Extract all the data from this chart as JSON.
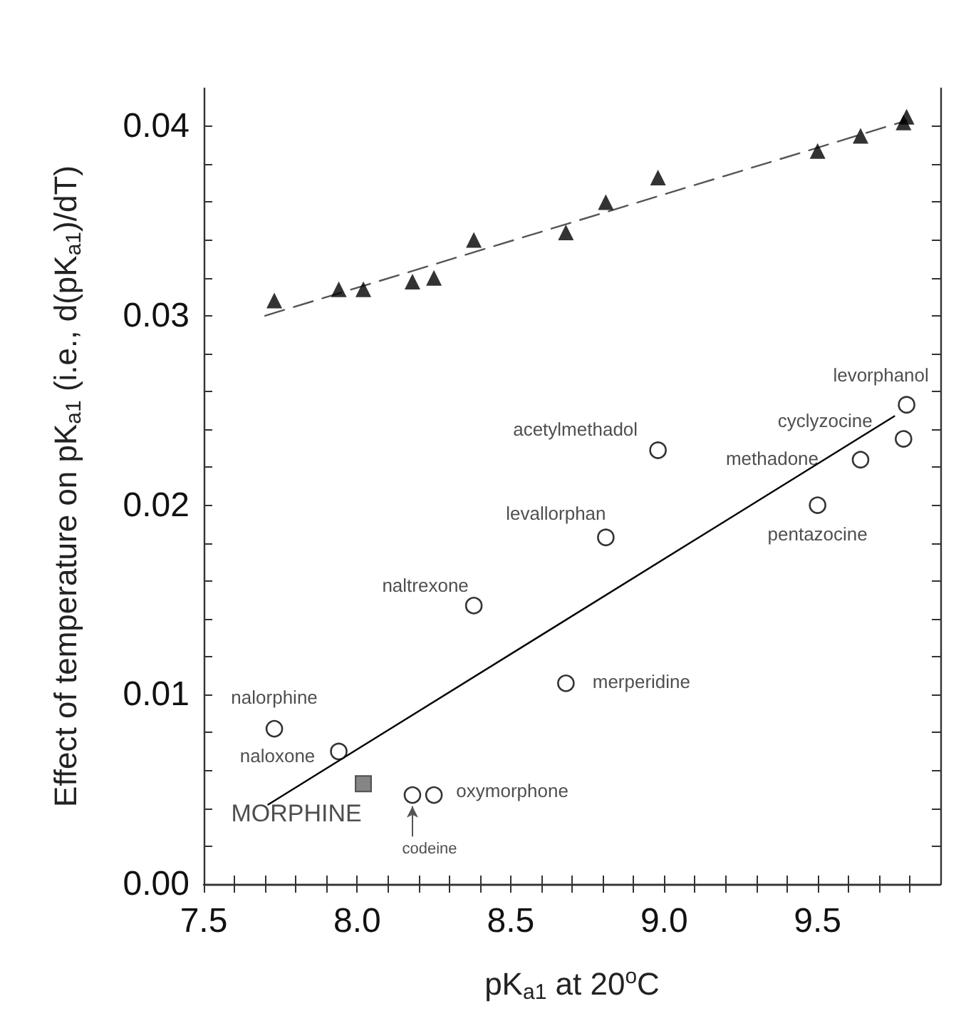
{
  "chart_data": {
    "type": "scatter",
    "xlabel": "pK$_{a1}$ at 20$^{o}$C",
    "ylabel": "Effect of temperature on pK$_{a1}$ (i.e., d(pK$_{a1}$)/dT)",
    "xlim": [
      7.5,
      9.9
    ],
    "xticks": [
      7.5,
      {
        "value": 7.6,
        "label": null
      },
      {
        "value": 7.7,
        "label": null
      },
      {
        "value": 7.8,
        "label": null
      },
      {
        "value": 7.9,
        "label": null
      },
      {
        "value": 8.0,
        "label": "8.0"
      },
      {
        "value": 8.1,
        "label": null
      },
      {
        "value": 8.2,
        "label": null
      },
      {
        "value": 8.3,
        "label": null
      },
      {
        "value": 8.4,
        "label": null
      },
      8.5,
      {
        "value": 8.6,
        "label": null
      },
      {
        "value": 8.7,
        "label": null
      },
      {
        "value": 8.8,
        "label": null
      },
      {
        "value": 8.9,
        "label": null
      },
      {
        "value": 9.0,
        "label": "9.0"
      },
      {
        "value": 9.1,
        "label": null
      },
      {
        "value": 9.2,
        "label": null
      },
      {
        "value": 9.3,
        "label": null
      },
      {
        "value": 9.4,
        "label": null
      },
      9.5,
      {
        "value": 9.6,
        "label": null
      },
      {
        "value": 9.7,
        "label": null
      },
      {
        "value": 9.8,
        "label": null
      }
    ],
    "ylim": [
      0,
      0.042
    ],
    "yticks": [
      {
        "value": 0,
        "label": "0.00"
      },
      {
        "value": 0.002,
        "label": null
      },
      {
        "value": 0.004,
        "label": null
      },
      {
        "value": 0.006,
        "label": null
      },
      {
        "value": 0.008,
        "label": null
      },
      0.01,
      {
        "value": 0.012,
        "label": null
      },
      {
        "value": 0.014,
        "label": null
      },
      {
        "value": 0.016,
        "label": null
      },
      {
        "value": 0.018,
        "label": null
      },
      {
        "value": 0.02,
        "label": "0.02"
      },
      {
        "value": 0.022,
        "label": null
      },
      {
        "value": 0.024,
        "label": null
      },
      {
        "value": 0.026,
        "label": null
      },
      {
        "value": 0.028,
        "label": null
      },
      0.03,
      {
        "value": 0.032,
        "label": null
      },
      {
        "value": 0.034,
        "label": null
      },
      {
        "value": 0.036,
        "label": null
      },
      {
        "value": 0.038,
        "label": null
      },
      {
        "value": 0.04,
        "label": "0.04"
      }
    ],
    "grid": false,
    "series": [
      {
        "marker": "triangle",
        "color": "#000000",
        "x": [
          7.73,
          7.94,
          8.02,
          8.18,
          8.25,
          8.38,
          8.68,
          8.81,
          8.98,
          9.5,
          9.64,
          9.78,
          9.79
        ],
        "values": [
          0.0308,
          0.0314,
          0.0314,
          0.0318,
          0.032,
          0.034,
          0.0344,
          0.036,
          0.0373,
          0.0387,
          0.0395,
          0.0402,
          0.0405
        ]
      },
      {
        "marker": "circle",
        "color": "#000000",
        "x": [
          7.73,
          7.94,
          8.18,
          8.25,
          8.38,
          8.68,
          8.81,
          8.98,
          9.64,
          9.5,
          9.78,
          9.79
        ],
        "values": [
          0.0082,
          0.007,
          0.0047,
          0.0047,
          0.0147,
          0.0106,
          0.0183,
          0.0229,
          0.0224,
          0.02,
          0.0235,
          0.0253
        ]
      },
      {
        "marker": "square",
        "color": "#666666",
        "x": [
          8.02
        ],
        "values": [
          0.0053
        ]
      },
      {
        "type": "line",
        "line_style": "dashed",
        "marker": "none",
        "color": "#555555",
        "x": [
          7.7,
          9.79
        ],
        "values": [
          0.03,
          0.0403
        ]
      },
      {
        "type": "line",
        "line_style": "solid",
        "marker": "none",
        "color": "#000000",
        "x": [
          7.71,
          9.75
        ],
        "values": [
          0.0042,
          0.0247
        ]
      }
    ],
    "annotations": [
      {
        "text": "nalorphine",
        "x": 7.73,
        "y": 0.0082
      },
      {
        "text": "naloxone",
        "x": 7.94,
        "y": 0.007
      },
      {
        "text": "codeine",
        "x": 8.18,
        "y": 0.0047
      },
      {
        "text": "oxymorphone",
        "x": 8.25,
        "y": 0.0047
      },
      {
        "text": "naltrexone",
        "x": 8.38,
        "y": 0.0147
      },
      {
        "text": "merperidine",
        "x": 8.68,
        "y": 0.0106
      },
      {
        "text": "levallorphan",
        "x": 8.81,
        "y": 0.0183
      },
      {
        "text": "acetylmethadol",
        "x": 8.98,
        "y": 0.0229
      },
      {
        "text": "methadone",
        "x": 9.64,
        "y": 0.0224
      },
      {
        "text": "pentazocine",
        "x": 9.5,
        "y": 0.02
      },
      {
        "text": "cyclyzocine",
        "x": 9.78,
        "y": 0.0235
      },
      {
        "text": "levorphanol",
        "x": 9.79,
        "y": 0.0253
      },
      {
        "text": "MORPHINE",
        "x": 8.02,
        "y": 0.0053
      }
    ]
  }
}
